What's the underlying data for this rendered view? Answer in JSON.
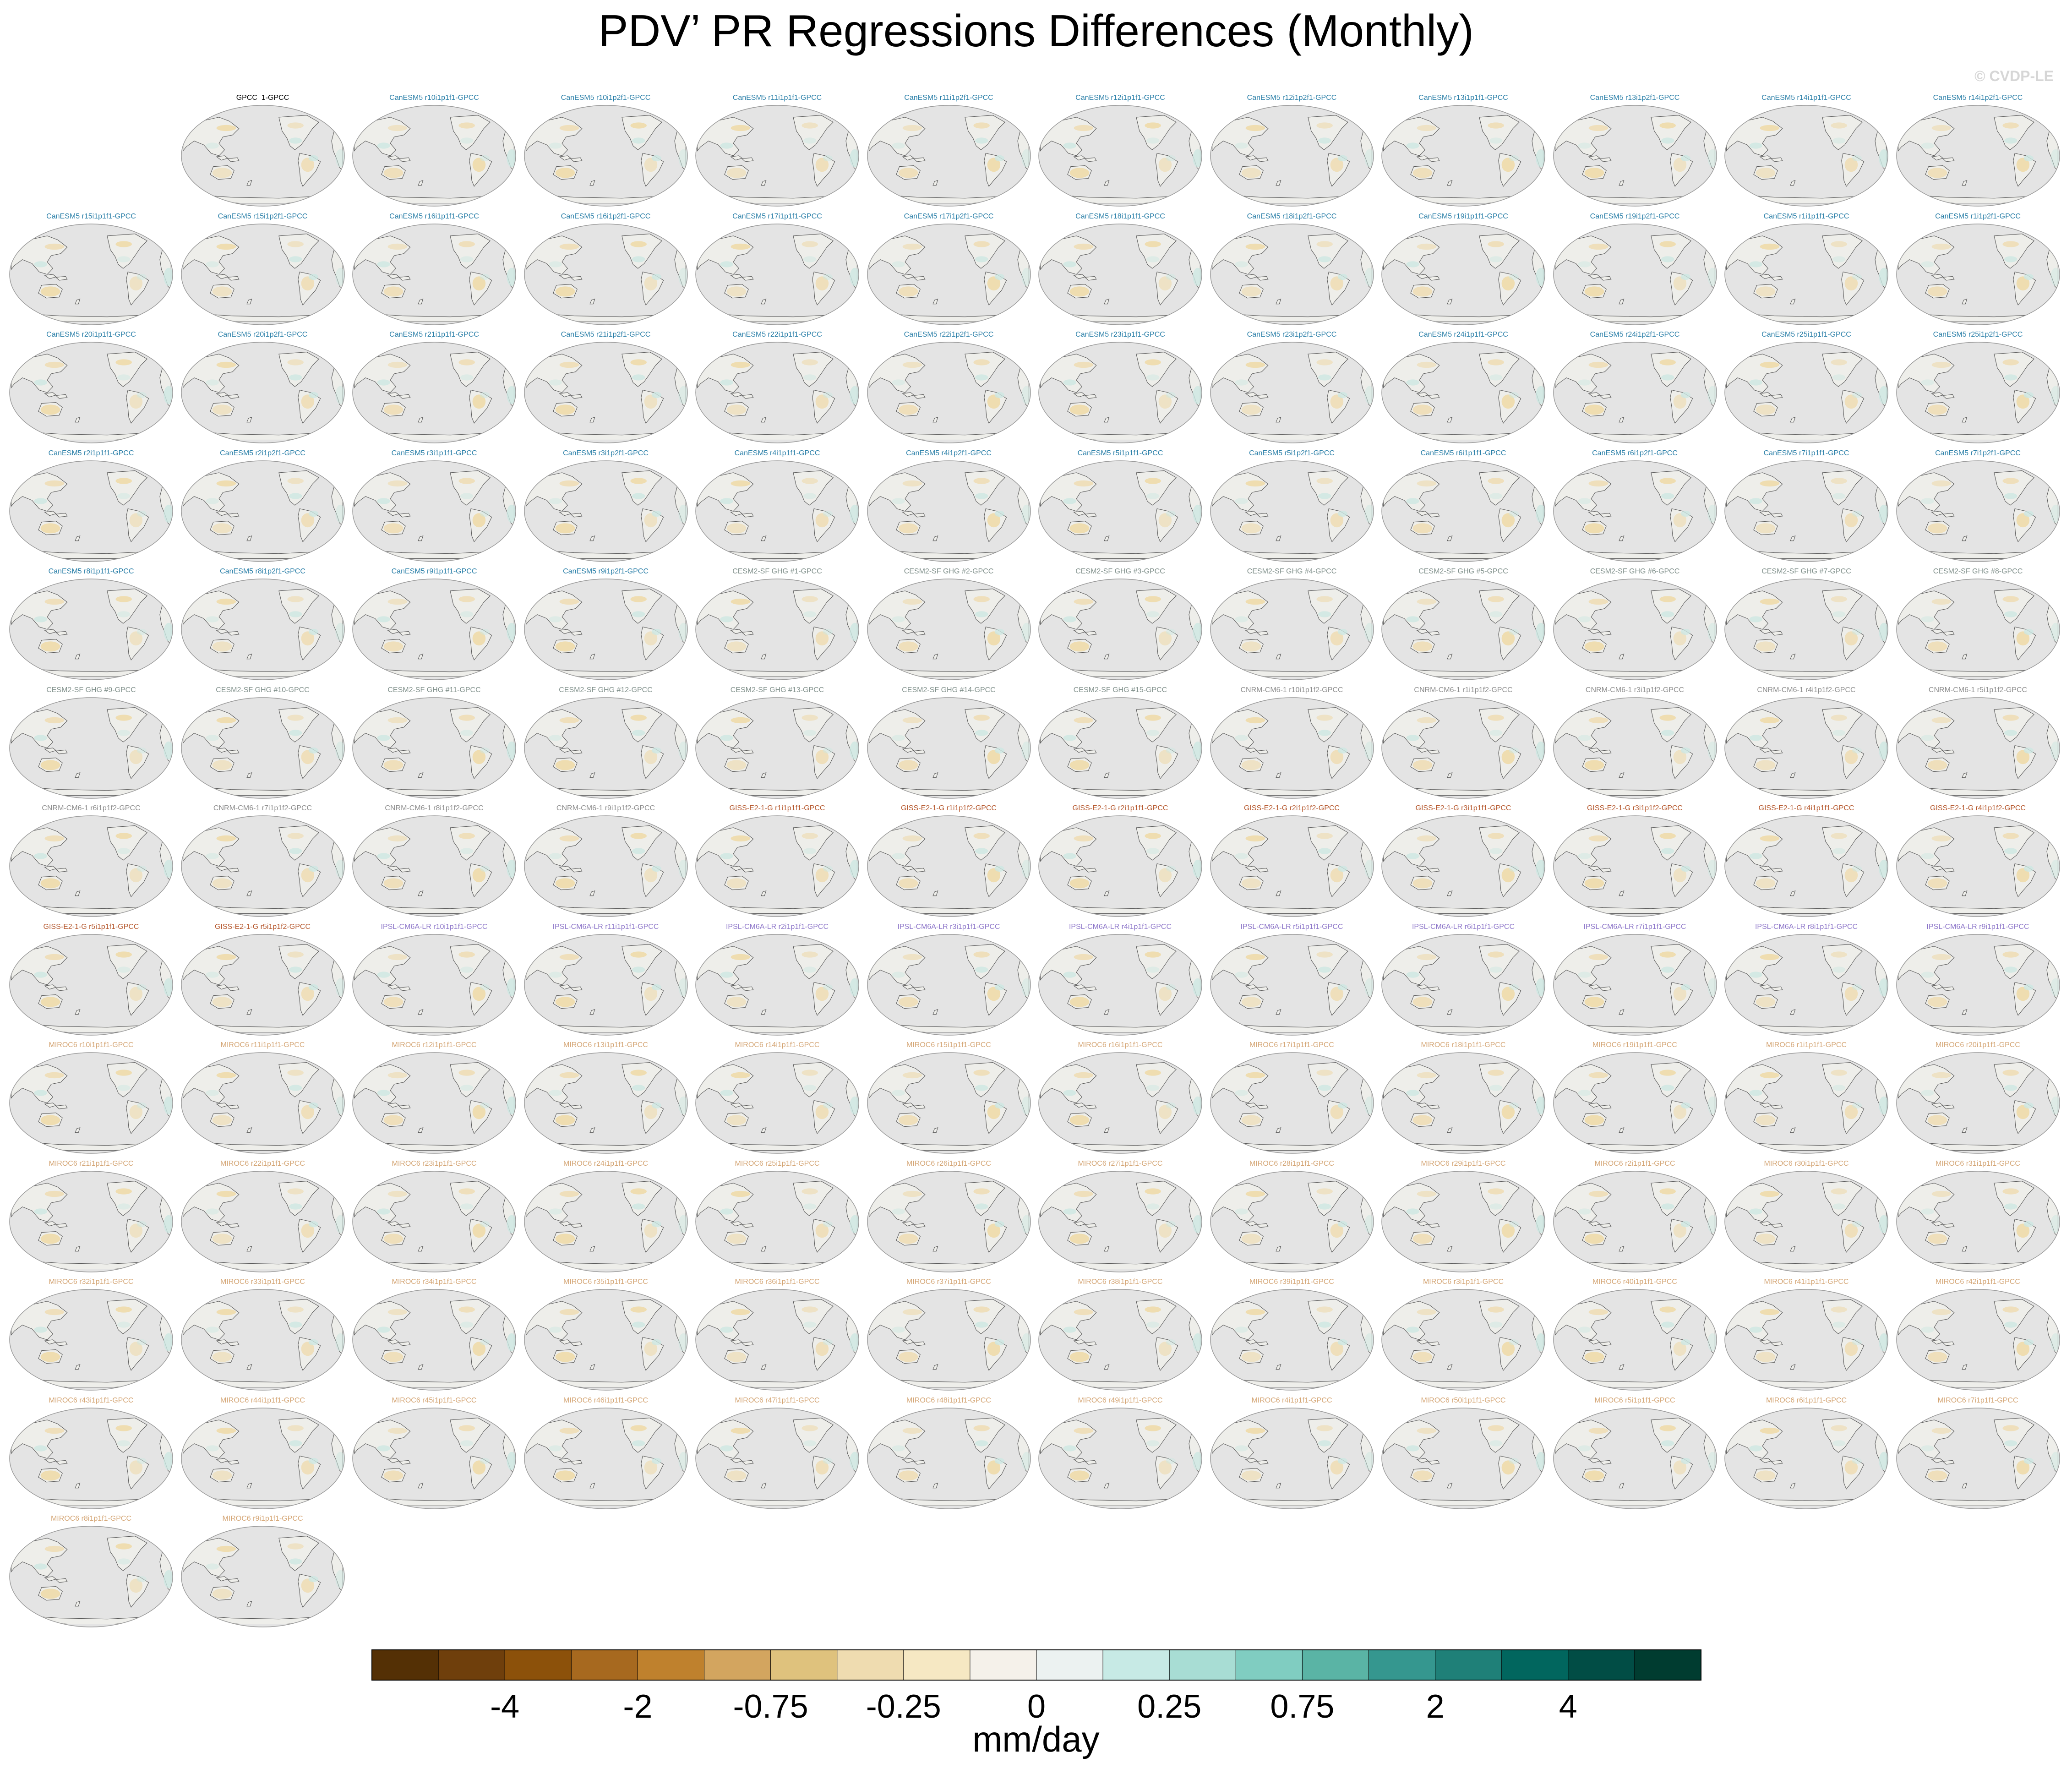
{
  "figure": {
    "title": "PDV’ PR Regressions Differences (Monthly)",
    "credit": "© CVDP-LE"
  },
  "chart_data": {
    "type": "map_panel_grid",
    "title": "PDV’ PR Regressions Differences (Monthly)",
    "projection": "robinson, pacific-centered",
    "colorbar": {
      "units": "mm/day",
      "tick_labels": [
        "-4",
        "-2",
        "-0.75",
        "-0.25",
        "0",
        "0.25",
        "0.75",
        "2",
        "4"
      ],
      "colors": [
        "#543005",
        "#6f3f0c",
        "#8c510a",
        "#a7691f",
        "#bf812d",
        "#d3a55f",
        "#dfc27d",
        "#efdcb0",
        "#f6e8c3",
        "#f5f1ea",
        "#ecf2f1",
        "#c7eae5",
        "#a8ddd4",
        "#80cdc1",
        "#5ab4a5",
        "#35978f",
        "#1f8078",
        "#01665e",
        "#014d45",
        "#003c30"
      ]
    },
    "panels": [
      {
        "label": "GPCC_1-GPCC",
        "group": "obs"
      },
      {
        "label": "CanESM5 r10i1p1f1-GPCC",
        "group": "canesm"
      },
      {
        "label": "CanESM5 r10i1p2f1-GPCC",
        "group": "canesm"
      },
      {
        "label": "CanESM5 r11i1p1f1-GPCC",
        "group": "canesm"
      },
      {
        "label": "CanESM5 r11i1p2f1-GPCC",
        "group": "canesm"
      },
      {
        "label": "CanESM5 r12i1p1f1-GPCC",
        "group": "canesm"
      },
      {
        "label": "CanESM5 r12i1p2f1-GPCC",
        "group": "canesm"
      },
      {
        "label": "CanESM5 r13i1p1f1-GPCC",
        "group": "canesm"
      },
      {
        "label": "CanESM5 r13i1p2f1-GPCC",
        "group": "canesm"
      },
      {
        "label": "CanESM5 r14i1p1f1-GPCC",
        "group": "canesm"
      },
      {
        "label": "CanESM5 r14i1p2f1-GPCC",
        "group": "canesm"
      },
      {
        "label": "CanESM5 r15i1p1f1-GPCC",
        "group": "canesm"
      },
      {
        "label": "CanESM5 r15i1p2f1-GPCC",
        "group": "canesm"
      },
      {
        "label": "CanESM5 r16i1p1f1-GPCC",
        "group": "canesm"
      },
      {
        "label": "CanESM5 r16i1p2f1-GPCC",
        "group": "canesm"
      },
      {
        "label": "CanESM5 r17i1p1f1-GPCC",
        "group": "canesm"
      },
      {
        "label": "CanESM5 r17i1p2f1-GPCC",
        "group": "canesm"
      },
      {
        "label": "CanESM5 r18i1p1f1-GPCC",
        "group": "canesm"
      },
      {
        "label": "CanESM5 r18i1p2f1-GPCC",
        "group": "canesm"
      },
      {
        "label": "CanESM5 r19i1p1f1-GPCC",
        "group": "canesm"
      },
      {
        "label": "CanESM5 r19i1p2f1-GPCC",
        "group": "canesm"
      },
      {
        "label": "CanESM5 r1i1p1f1-GPCC",
        "group": "canesm"
      },
      {
        "label": "CanESM5 r1i1p2f1-GPCC",
        "group": "canesm"
      },
      {
        "label": "CanESM5 r20i1p1f1-GPCC",
        "group": "canesm"
      },
      {
        "label": "CanESM5 r20i1p2f1-GPCC",
        "group": "canesm"
      },
      {
        "label": "CanESM5 r21i1p1f1-GPCC",
        "group": "canesm"
      },
      {
        "label": "CanESM5 r21i1p2f1-GPCC",
        "group": "canesm"
      },
      {
        "label": "CanESM5 r22i1p1f1-GPCC",
        "group": "canesm"
      },
      {
        "label": "CanESM5 r22i1p2f1-GPCC",
        "group": "canesm"
      },
      {
        "label": "CanESM5 r23i1p1f1-GPCC",
        "group": "canesm"
      },
      {
        "label": "CanESM5 r23i1p2f1-GPCC",
        "group": "canesm"
      },
      {
        "label": "CanESM5 r24i1p1f1-GPCC",
        "group": "canesm"
      },
      {
        "label": "CanESM5 r24i1p2f1-GPCC",
        "group": "canesm"
      },
      {
        "label": "CanESM5 r25i1p1f1-GPCC",
        "group": "canesm"
      },
      {
        "label": "CanESM5 r25i1p2f1-GPCC",
        "group": "canesm"
      },
      {
        "label": "CanESM5 r2i1p1f1-GPCC",
        "group": "canesm"
      },
      {
        "label": "CanESM5 r2i1p2f1-GPCC",
        "group": "canesm"
      },
      {
        "label": "CanESM5 r3i1p1f1-GPCC",
        "group": "canesm"
      },
      {
        "label": "CanESM5 r3i1p2f1-GPCC",
        "group": "canesm"
      },
      {
        "label": "CanESM5 r4i1p1f1-GPCC",
        "group": "canesm"
      },
      {
        "label": "CanESM5 r4i1p2f1-GPCC",
        "group": "canesm"
      },
      {
        "label": "CanESM5 r5i1p1f1-GPCC",
        "group": "canesm"
      },
      {
        "label": "CanESM5 r5i1p2f1-GPCC",
        "group": "canesm"
      },
      {
        "label": "CanESM5 r6i1p1f1-GPCC",
        "group": "canesm"
      },
      {
        "label": "CanESM5 r6i1p2f1-GPCC",
        "group": "canesm"
      },
      {
        "label": "CanESM5 r7i1p1f1-GPCC",
        "group": "canesm"
      },
      {
        "label": "CanESM5 r7i1p2f1-GPCC",
        "group": "canesm"
      },
      {
        "label": "CanESM5 r8i1p1f1-GPCC",
        "group": "canesm"
      },
      {
        "label": "CanESM5 r8i1p2f1-GPCC",
        "group": "canesm"
      },
      {
        "label": "CanESM5 r9i1p1f1-GPCC",
        "group": "canesm"
      },
      {
        "label": "CanESM5 r9i1p2f1-GPCC",
        "group": "canesm"
      },
      {
        "label": "CESM2-SF GHG #1-GPCC",
        "group": "cesm"
      },
      {
        "label": "CESM2-SF GHG #2-GPCC",
        "group": "cesm"
      },
      {
        "label": "CESM2-SF GHG #3-GPCC",
        "group": "cesm"
      },
      {
        "label": "CESM2-SF GHG #4-GPCC",
        "group": "cesm"
      },
      {
        "label": "CESM2-SF GHG #5-GPCC",
        "group": "cesm"
      },
      {
        "label": "CESM2-SF GHG #6-GPCC",
        "group": "cesm"
      },
      {
        "label": "CESM2-SF GHG #7-GPCC",
        "group": "cesm"
      },
      {
        "label": "CESM2-SF GHG #8-GPCC",
        "group": "cesm"
      },
      {
        "label": "CESM2-SF GHG #9-GPCC",
        "group": "cesm"
      },
      {
        "label": "CESM2-SF GHG #10-GPCC",
        "group": "cesm"
      },
      {
        "label": "CESM2-SF GHG #11-GPCC",
        "group": "cesm"
      },
      {
        "label": "CESM2-SF GHG #12-GPCC",
        "group": "cesm"
      },
      {
        "label": "CESM2-SF GHG #13-GPCC",
        "group": "cesm"
      },
      {
        "label": "CESM2-SF GHG #14-GPCC",
        "group": "cesm"
      },
      {
        "label": "CESM2-SF GHG #15-GPCC",
        "group": "cesm"
      },
      {
        "label": "CNRM-CM6-1 r10i1p1f2-GPCC",
        "group": "cnrm"
      },
      {
        "label": "CNRM-CM6-1 r1i1p1f2-GPCC",
        "group": "cnrm"
      },
      {
        "label": "CNRM-CM6-1 r3i1p1f2-GPCC",
        "group": "cnrm"
      },
      {
        "label": "CNRM-CM6-1 r4i1p1f2-GPCC",
        "group": "cnrm"
      },
      {
        "label": "CNRM-CM6-1 r5i1p1f2-GPCC",
        "group": "cnrm"
      },
      {
        "label": "CNRM-CM6-1 r6i1p1f2-GPCC",
        "group": "cnrm"
      },
      {
        "label": "CNRM-CM6-1 r7i1p1f2-GPCC",
        "group": "cnrm"
      },
      {
        "label": "CNRM-CM6-1 r8i1p1f2-GPCC",
        "group": "cnrm"
      },
      {
        "label": "CNRM-CM6-1 r9i1p1f2-GPCC",
        "group": "cnrm"
      },
      {
        "label": "GISS-E2-1-G r1i1p1f1-GPCC",
        "group": "giss"
      },
      {
        "label": "GISS-E2-1-G r1i1p1f2-GPCC",
        "group": "giss"
      },
      {
        "label": "GISS-E2-1-G r2i1p1f1-GPCC",
        "group": "giss"
      },
      {
        "label": "GISS-E2-1-G r2i1p1f2-GPCC",
        "group": "giss"
      },
      {
        "label": "GISS-E2-1-G r3i1p1f1-GPCC",
        "group": "giss"
      },
      {
        "label": "GISS-E2-1-G r3i1p1f2-GPCC",
        "group": "giss"
      },
      {
        "label": "GISS-E2-1-G r4i1p1f1-GPCC",
        "group": "giss"
      },
      {
        "label": "GISS-E2-1-G r4i1p1f2-GPCC",
        "group": "giss"
      },
      {
        "label": "GISS-E2-1-G r5i1p1f1-GPCC",
        "group": "giss"
      },
      {
        "label": "GISS-E2-1-G r5i1p1f2-GPCC",
        "group": "giss"
      },
      {
        "label": "IPSL-CM6A-LR r10i1p1f1-GPCC",
        "group": "ipsl"
      },
      {
        "label": "IPSL-CM6A-LR r11i1p1f1-GPCC",
        "group": "ipsl"
      },
      {
        "label": "IPSL-CM6A-LR r2i1p1f1-GPCC",
        "group": "ipsl"
      },
      {
        "label": "IPSL-CM6A-LR r3i1p1f1-GPCC",
        "group": "ipsl"
      },
      {
        "label": "IPSL-CM6A-LR r4i1p1f1-GPCC",
        "group": "ipsl"
      },
      {
        "label": "IPSL-CM6A-LR r5i1p1f1-GPCC",
        "group": "ipsl"
      },
      {
        "label": "IPSL-CM6A-LR r6i1p1f1-GPCC",
        "group": "ipsl"
      },
      {
        "label": "IPSL-CM6A-LR r7i1p1f1-GPCC",
        "group": "ipsl"
      },
      {
        "label": "IPSL-CM6A-LR r8i1p1f1-GPCC",
        "group": "ipsl"
      },
      {
        "label": "IPSL-CM6A-LR r9i1p1f1-GPCC",
        "group": "ipsl"
      },
      {
        "label": "MIROC6 r10i1p1f1-GPCC",
        "group": "miroc"
      },
      {
        "label": "MIROC6 r11i1p1f1-GPCC",
        "group": "miroc"
      },
      {
        "label": "MIROC6 r12i1p1f1-GPCC",
        "group": "miroc"
      },
      {
        "label": "MIROC6 r13i1p1f1-GPCC",
        "group": "miroc"
      },
      {
        "label": "MIROC6 r14i1p1f1-GPCC",
        "group": "miroc"
      },
      {
        "label": "MIROC6 r15i1p1f1-GPCC",
        "group": "miroc"
      },
      {
        "label": "MIROC6 r16i1p1f1-GPCC",
        "group": "miroc"
      },
      {
        "label": "MIROC6 r17i1p1f1-GPCC",
        "group": "miroc"
      },
      {
        "label": "MIROC6 r18i1p1f1-GPCC",
        "group": "miroc"
      },
      {
        "label": "MIROC6 r19i1p1f1-GPCC",
        "group": "miroc"
      },
      {
        "label": "MIROC6 r1i1p1f1-GPCC",
        "group": "miroc"
      },
      {
        "label": "MIROC6 r20i1p1f1-GPCC",
        "group": "miroc"
      },
      {
        "label": "MIROC6 r21i1p1f1-GPCC",
        "group": "miroc"
      },
      {
        "label": "MIROC6 r22i1p1f1-GPCC",
        "group": "miroc"
      },
      {
        "label": "MIROC6 r23i1p1f1-GPCC",
        "group": "miroc"
      },
      {
        "label": "MIROC6 r24i1p1f1-GPCC",
        "group": "miroc"
      },
      {
        "label": "MIROC6 r25i1p1f1-GPCC",
        "group": "miroc"
      },
      {
        "label": "MIROC6 r26i1p1f1-GPCC",
        "group": "miroc"
      },
      {
        "label": "MIROC6 r27i1p1f1-GPCC",
        "group": "miroc"
      },
      {
        "label": "MIROC6 r28i1p1f1-GPCC",
        "group": "miroc"
      },
      {
        "label": "MIROC6 r29i1p1f1-GPCC",
        "group": "miroc"
      },
      {
        "label": "MIROC6 r2i1p1f1-GPCC",
        "group": "miroc"
      },
      {
        "label": "MIROC6 r30i1p1f1-GPCC",
        "group": "miroc"
      },
      {
        "label": "MIROC6 r31i1p1f1-GPCC",
        "group": "miroc"
      },
      {
        "label": "MIROC6 r32i1p1f1-GPCC",
        "group": "miroc"
      },
      {
        "label": "MIROC6 r33i1p1f1-GPCC",
        "group": "miroc"
      },
      {
        "label": "MIROC6 r34i1p1f1-GPCC",
        "group": "miroc"
      },
      {
        "label": "MIROC6 r35i1p1f1-GPCC",
        "group": "miroc"
      },
      {
        "label": "MIROC6 r36i1p1f1-GPCC",
        "group": "miroc"
      },
      {
        "label": "MIROC6 r37i1p1f1-GPCC",
        "group": "miroc"
      },
      {
        "label": "MIROC6 r38i1p1f1-GPCC",
        "group": "miroc"
      },
      {
        "label": "MIROC6 r39i1p1f1-GPCC",
        "group": "miroc"
      },
      {
        "label": "MIROC6 r3i1p1f1-GPCC",
        "group": "miroc"
      },
      {
        "label": "MIROC6 r40i1p1f1-GPCC",
        "group": "miroc"
      },
      {
        "label": "MIROC6 r41i1p1f1-GPCC",
        "group": "miroc"
      },
      {
        "label": "MIROC6 r42i1p1f1-GPCC",
        "group": "miroc"
      },
      {
        "label": "MIROC6 r43i1p1f1-GPCC",
        "group": "miroc"
      },
      {
        "label": "MIROC6 r44i1p1f1-GPCC",
        "group": "miroc"
      },
      {
        "label": "MIROC6 r45i1p1f1-GPCC",
        "group": "miroc"
      },
      {
        "label": "MIROC6 r46i1p1f1-GPCC",
        "group": "miroc"
      },
      {
        "label": "MIROC6 r47i1p1f1-GPCC",
        "group": "miroc"
      },
      {
        "label": "MIROC6 r48i1p1f1-GPCC",
        "group": "miroc"
      },
      {
        "label": "MIROC6 r49i1p1f1-GPCC",
        "group": "miroc"
      },
      {
        "label": "MIROC6 r4i1p1f1-GPCC",
        "group": "miroc"
      },
      {
        "label": "MIROC6 r50i1p1f1-GPCC",
        "group": "miroc"
      },
      {
        "label": "MIROC6 r5i1p1f1-GPCC",
        "group": "miroc"
      },
      {
        "label": "MIROC6 r6i1p1f1-GPCC",
        "group": "miroc"
      },
      {
        "label": "MIROC6 r7i1p1f1-GPCC",
        "group": "miroc"
      },
      {
        "label": "MIROC6 r8i1p1f1-GPCC",
        "group": "miroc"
      },
      {
        "label": "MIROC6 r9i1p1f1-GPCC",
        "group": "miroc"
      }
    ],
    "group_label_colors": {
      "obs": "#000000",
      "canesm": "#2a7fa8",
      "cesm": "#7f8f8a",
      "cnrm": "#8c8c8c",
      "giss": "#b4552a",
      "ipsl": "#8d76c9",
      "miroc": "#d4a574"
    },
    "map_colors": {
      "ocean_mask": "#e4e4e4",
      "land_fill": "#eeeeea",
      "coastline": "#5a5a5a",
      "frame": "#9a9a9a",
      "dry_tint": "#efd9a6",
      "wet_tint": "#cde7e2"
    }
  }
}
